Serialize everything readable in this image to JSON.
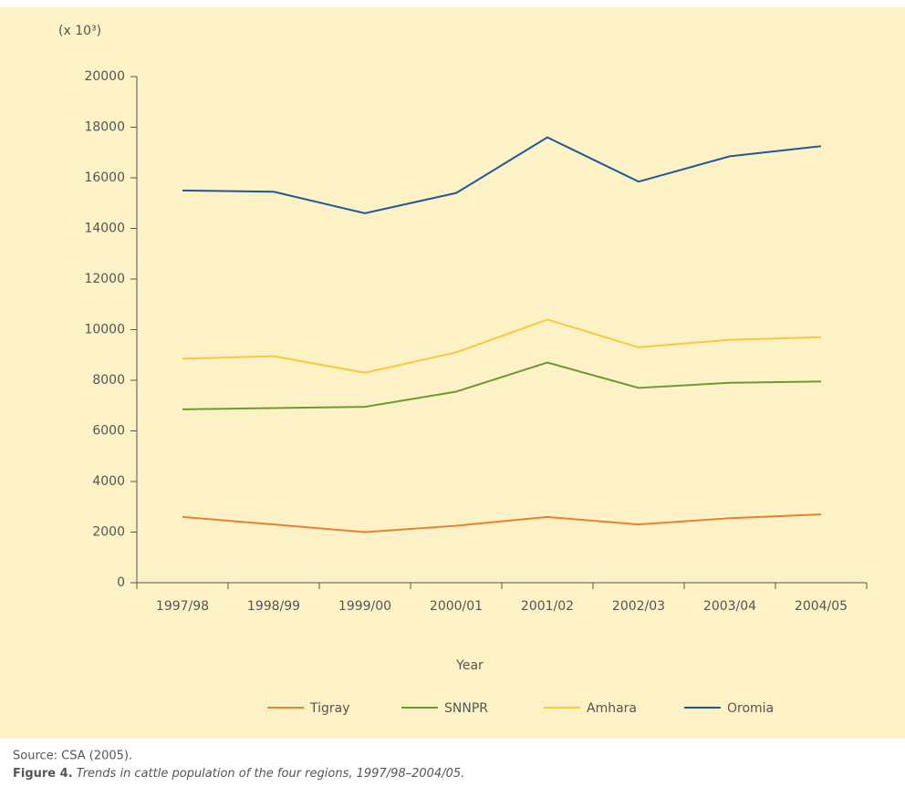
{
  "chart_data": {
    "type": "line",
    "y_label": "(x 10³)",
    "x_label": "Year",
    "categories": [
      "1997/98",
      "1998/99",
      "1999/00",
      "2000/01",
      "2001/02",
      "2002/03",
      "2003/04",
      "2004/05"
    ],
    "series": [
      {
        "name": "Tigray",
        "color": "#e8812e",
        "values": [
          2600,
          2300,
          2000,
          2250,
          2600,
          2300,
          2550,
          2700
        ]
      },
      {
        "name": "SNNPR",
        "color": "#6f9a30",
        "values": [
          6850,
          6900,
          6950,
          7550,
          8700,
          7700,
          7900,
          7950
        ]
      },
      {
        "name": "Amhara",
        "color": "#fbc83c",
        "values": [
          8850,
          8950,
          8300,
          9100,
          10400,
          9300,
          9600,
          9700
        ]
      },
      {
        "name": "Oromia",
        "color": "#1e5a98",
        "values": [
          15500,
          15450,
          14600,
          15400,
          17600,
          15850,
          16850,
          17250
        ]
      }
    ],
    "ylim": [
      0,
      20000
    ],
    "yticks": [
      0,
      2000,
      4000,
      6000,
      8000,
      10000,
      12000,
      14000,
      16000,
      18000,
      20000
    ],
    "grid": false,
    "legend": "bottom",
    "source": "Source: CSA (2005).",
    "figure_label": "Figure 4.",
    "figure_caption": "Trends in cattle population of the four regions, 1997/98–2004/05."
  }
}
